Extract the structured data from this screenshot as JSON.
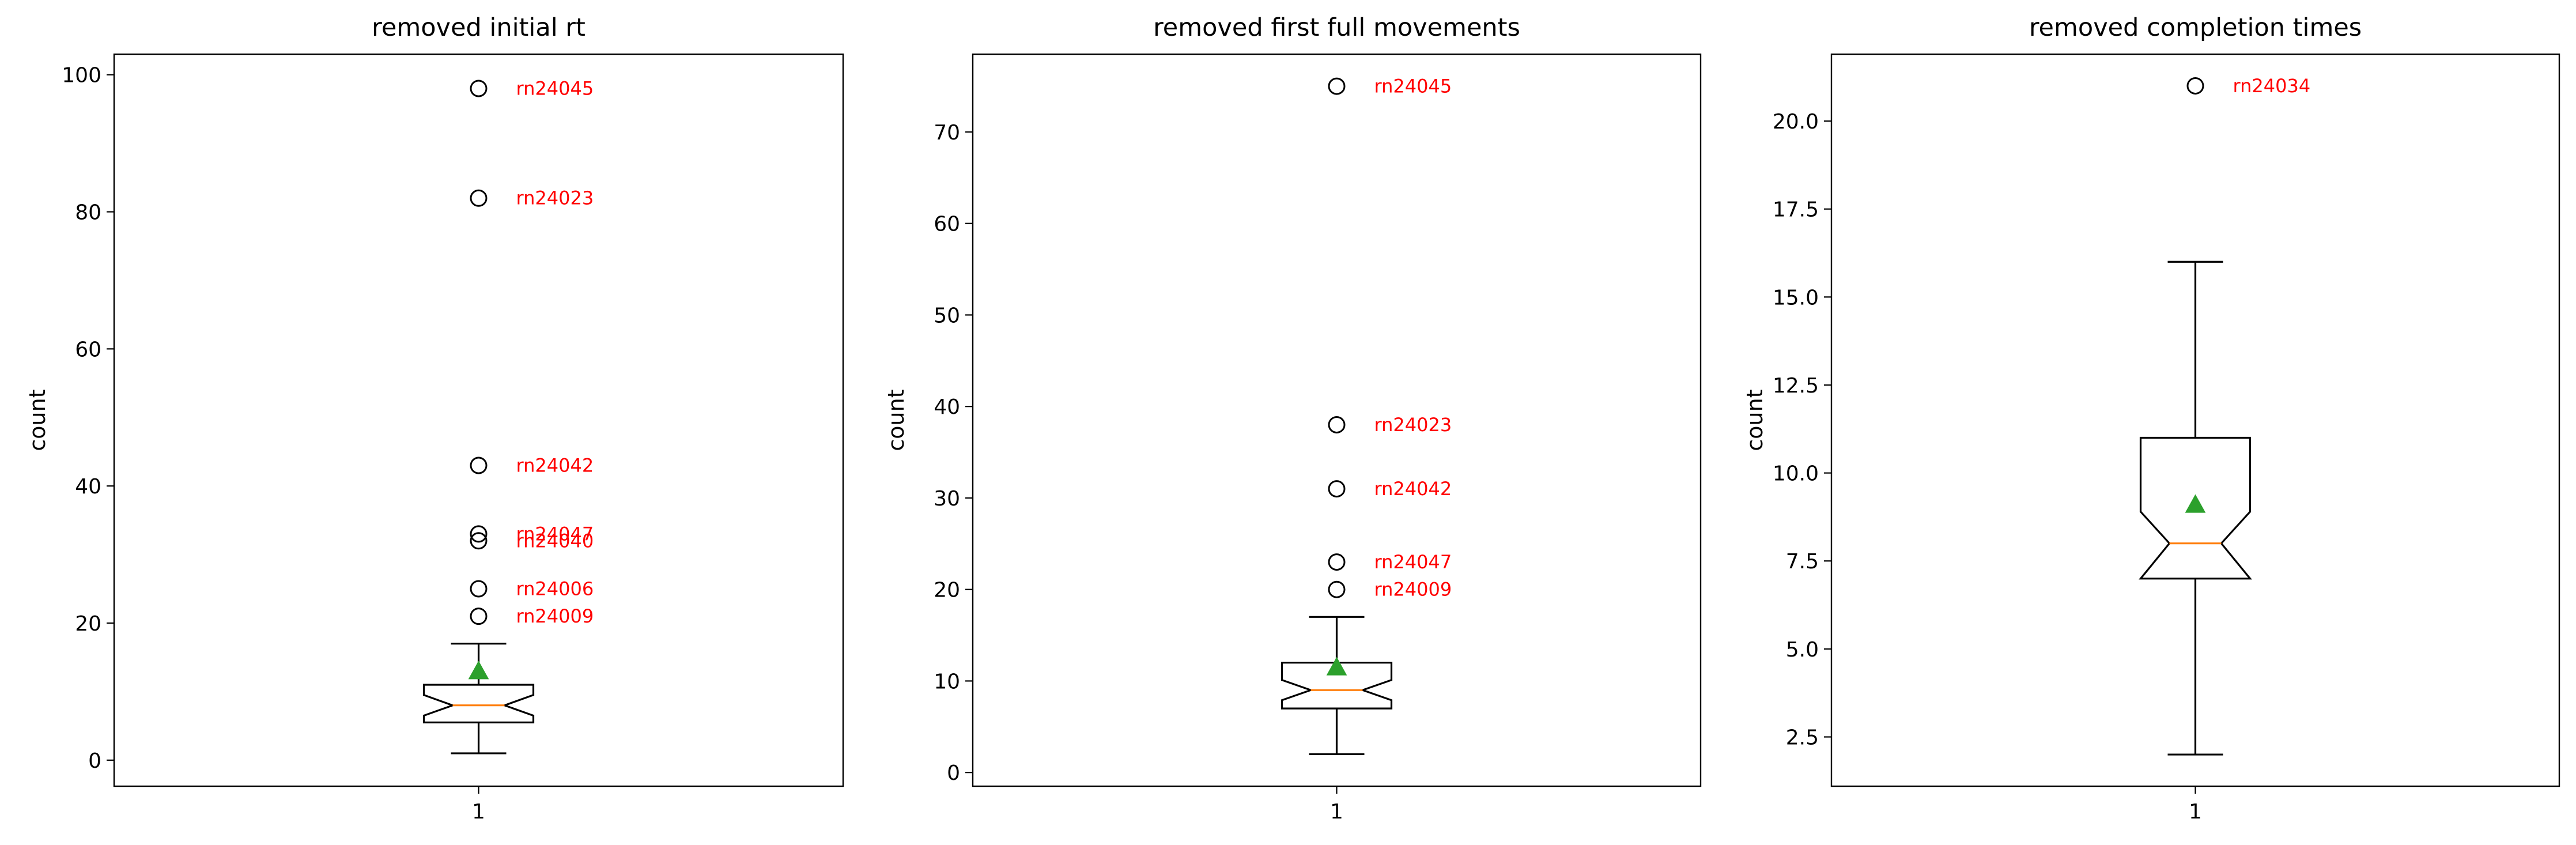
{
  "chart_data": [
    {
      "type": "box",
      "title": "removed initial rt",
      "ylabel": "count",
      "xlabel": "",
      "categories": [
        "1"
      ],
      "ylim": [
        -3.8,
        103
      ],
      "yticks": [
        "0",
        "20",
        "40",
        "60",
        "80",
        "100"
      ],
      "ytick_values": [
        0,
        20,
        40,
        60,
        80,
        100
      ],
      "notched": true,
      "box": {
        "whisker_low": 1,
        "q1": 5.5,
        "median": 8,
        "q3": 11,
        "whisker_high": 17,
        "mean": 13,
        "notch_low": 6.5,
        "notch_high": 9.5
      },
      "outliers": [
        {
          "value": 98,
          "label": "rn24045"
        },
        {
          "value": 82,
          "label": "rn24023"
        },
        {
          "value": 43,
          "label": "rn24042"
        },
        {
          "value": 33,
          "label": "rn24047"
        },
        {
          "value": 32,
          "label": "rn24040"
        },
        {
          "value": 25,
          "label": "rn24006"
        },
        {
          "value": 21,
          "label": "rn24009"
        }
      ]
    },
    {
      "type": "box",
      "title": "removed first full movements",
      "ylabel": "count",
      "xlabel": "",
      "categories": [
        "1"
      ],
      "ylim": [
        -1.5,
        78.5
      ],
      "yticks": [
        "0",
        "10",
        "20",
        "30",
        "40",
        "50",
        "60",
        "70"
      ],
      "ytick_values": [
        0,
        10,
        20,
        30,
        40,
        50,
        60,
        70
      ],
      "notched": true,
      "box": {
        "whisker_low": 2,
        "q1": 7,
        "median": 9,
        "q3": 12,
        "whisker_high": 17,
        "mean": 11.5,
        "notch_low": 7.9,
        "notch_high": 10.1
      },
      "outliers": [
        {
          "value": 75,
          "label": "rn24045"
        },
        {
          "value": 38,
          "label": "rn24023"
        },
        {
          "value": 31,
          "label": "rn24042"
        },
        {
          "value": 23,
          "label": "rn24047"
        },
        {
          "value": 20,
          "label": "rn24009"
        }
      ]
    },
    {
      "type": "box",
      "title": "removed completion times",
      "ylabel": "count",
      "xlabel": "",
      "categories": [
        "1"
      ],
      "ylim": [
        1.1,
        21.9
      ],
      "yticks": [
        "2.5",
        "5.0",
        "7.5",
        "10.0",
        "12.5",
        "15.0",
        "17.5",
        "20.0"
      ],
      "ytick_values": [
        2.5,
        5.0,
        7.5,
        10.0,
        12.5,
        15.0,
        17.5,
        20.0
      ],
      "notched": true,
      "box": {
        "whisker_low": 2,
        "q1": 7,
        "median": 8,
        "q3": 11,
        "whisker_high": 16,
        "mean": 9.1,
        "notch_low": 7.0,
        "notch_high": 8.9
      },
      "outliers": [
        {
          "value": 21,
          "label": "rn24034"
        }
      ]
    }
  ],
  "colors": {
    "median": "#ff7f0e",
    "mean": "#2ca02c",
    "outlier_label": "#ff0000",
    "box": "#000000"
  }
}
